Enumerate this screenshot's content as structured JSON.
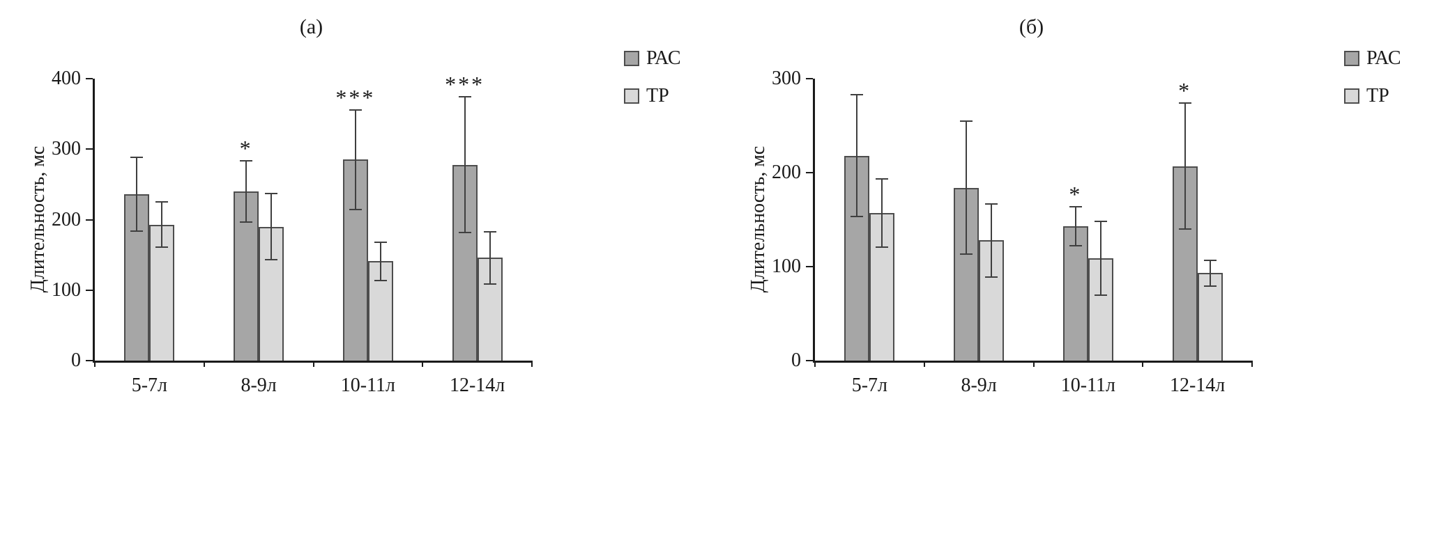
{
  "figure": {
    "background": "#ffffff",
    "axis_color": "#1a1a1a",
    "error_bar_color": "#3f3f3f",
    "bar_border_color": "#4d4d4d"
  },
  "chart_data": [
    {
      "type": "bar",
      "title": "(а)",
      "ylabel": "Длительность, мс",
      "xlabel": "",
      "categories": [
        "5-7л",
        "8-9л",
        "10-11л",
        "12-14л"
      ],
      "ylim": [
        0,
        400
      ],
      "yticks": [
        0,
        100,
        200,
        300,
        400
      ],
      "grid": false,
      "legend_position": "top-right",
      "series": [
        {
          "name": "РАС",
          "color": "#a6a6a6",
          "values": [
            236,
            240,
            285,
            278
          ],
          "errors": [
            52,
            43,
            71,
            96
          ],
          "annotations": [
            "",
            "*",
            "***",
            "***"
          ]
        },
        {
          "name": "ТР",
          "color": "#d9d9d9",
          "values": [
            193,
            190,
            141,
            146
          ],
          "errors": [
            32,
            47,
            27,
            37
          ],
          "annotations": [
            "",
            "",
            "",
            ""
          ]
        }
      ]
    },
    {
      "type": "bar",
      "title": "(б)",
      "ylabel": "Длительность, мс",
      "xlabel": "",
      "categories": [
        "5-7л",
        "8-9л",
        "10-11л",
        "12-14л"
      ],
      "ylim": [
        0,
        300
      ],
      "yticks": [
        0,
        100,
        200,
        300
      ],
      "grid": false,
      "legend_position": "top-right",
      "series": [
        {
          "name": "РАС",
          "color": "#a6a6a6",
          "values": [
            218,
            184,
            143,
            207
          ],
          "errors": [
            65,
            71,
            21,
            67
          ],
          "annotations": [
            "",
            "",
            "*",
            "*"
          ]
        },
        {
          "name": "ТР",
          "color": "#d9d9d9",
          "values": [
            157,
            128,
            109,
            93
          ],
          "errors": [
            36,
            39,
            39,
            14
          ],
          "annotations": [
            "",
            "",
            "",
            ""
          ]
        }
      ]
    }
  ]
}
